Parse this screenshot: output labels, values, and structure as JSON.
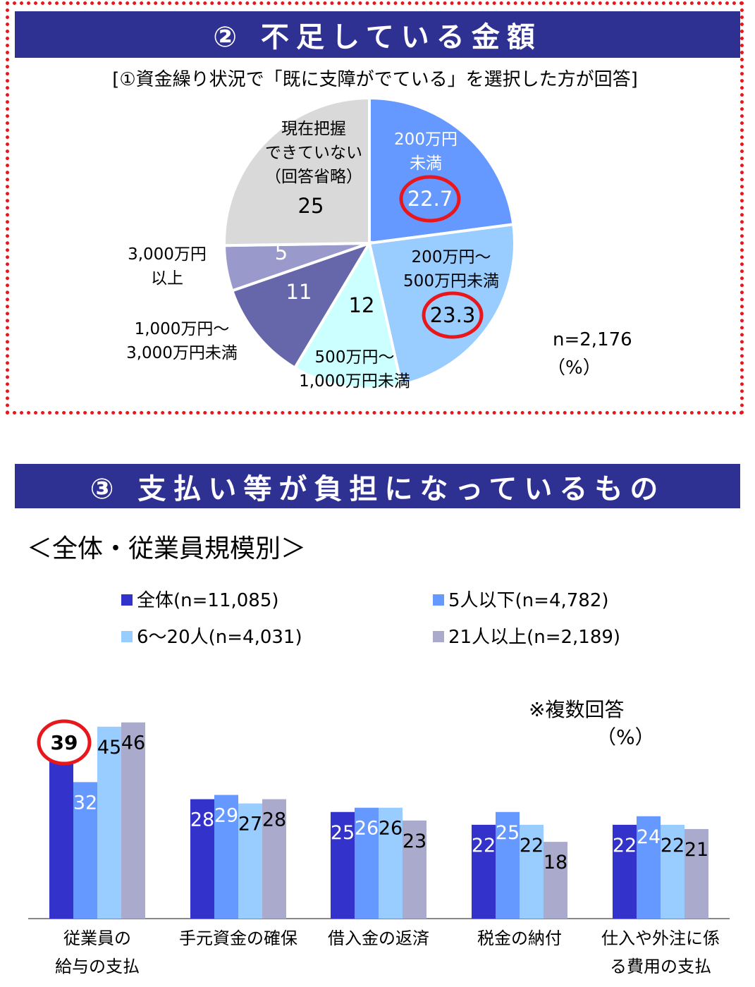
{
  "section2": {
    "title": "② 不足している金額",
    "subtitle": "[①資金繰り状況で「既に支障がでている」を選択した方が回答]",
    "n_label": "n=2,176",
    "unit_label": "（%）"
  },
  "section3": {
    "title": "③ 支払い等が負担になっているもの",
    "subheading": "＜全体・従業員規模別＞",
    "note": "※複数回答",
    "unit_label": "（%）"
  },
  "chart_data": [
    {
      "type": "pie",
      "slices": [
        {
          "label_lines": [
            "200万円",
            "未満"
          ],
          "value": 22.7,
          "value_text": "22.7",
          "color": "#6699ff",
          "highlighted": true
        },
        {
          "label_lines": [
            "200万円～",
            "500万円未満"
          ],
          "value": 23.3,
          "value_text": "23.3",
          "color": "#99ccff",
          "highlighted": true
        },
        {
          "label_lines": [
            "500万円～",
            "1,000万円未満"
          ],
          "value": 12,
          "value_text": "12",
          "color": "#ccffff",
          "highlighted": false
        },
        {
          "label_lines": [
            "1,000万円～",
            "3,000万円未満"
          ],
          "value": 11,
          "value_text": "11",
          "color": "#6666aa",
          "highlighted": false
        },
        {
          "label_lines": [
            "3,000万円",
            "以上"
          ],
          "value": 5,
          "value_text": "5",
          "color": "#9999cc",
          "highlighted": false
        },
        {
          "label_lines": [
            "現在把握",
            "できていない",
            "（回答省略）"
          ],
          "value": 25,
          "value_text": "25",
          "color": "#d9d9d9",
          "highlighted": false
        }
      ]
    },
    {
      "type": "bar",
      "categories": [
        [
          "従業員の",
          "給与の支払"
        ],
        [
          "手元資金の確保"
        ],
        [
          "借入金の返済"
        ],
        [
          "税金の納付"
        ],
        [
          "仕入や外注に係",
          "る費用の支払"
        ]
      ],
      "series": [
        {
          "name": "全体(n=11,085)",
          "color": "#3333cc",
          "values": [
            39,
            28,
            25,
            22,
            22
          ]
        },
        {
          "name": "5人以下(n=4,782)",
          "color": "#6699ff",
          "values": [
            32,
            29,
            26,
            25,
            24
          ]
        },
        {
          "name": "6～20人(n=4,031)",
          "color": "#99ccff",
          "values": [
            45,
            27,
            26,
            22,
            22
          ]
        },
        {
          "name": "21人以上(n=2,189)",
          "color": "#aaaacc",
          "values": [
            46,
            28,
            23,
            18,
            21
          ]
        }
      ],
      "highlighted": {
        "series": 0,
        "category": 0
      }
    }
  ]
}
